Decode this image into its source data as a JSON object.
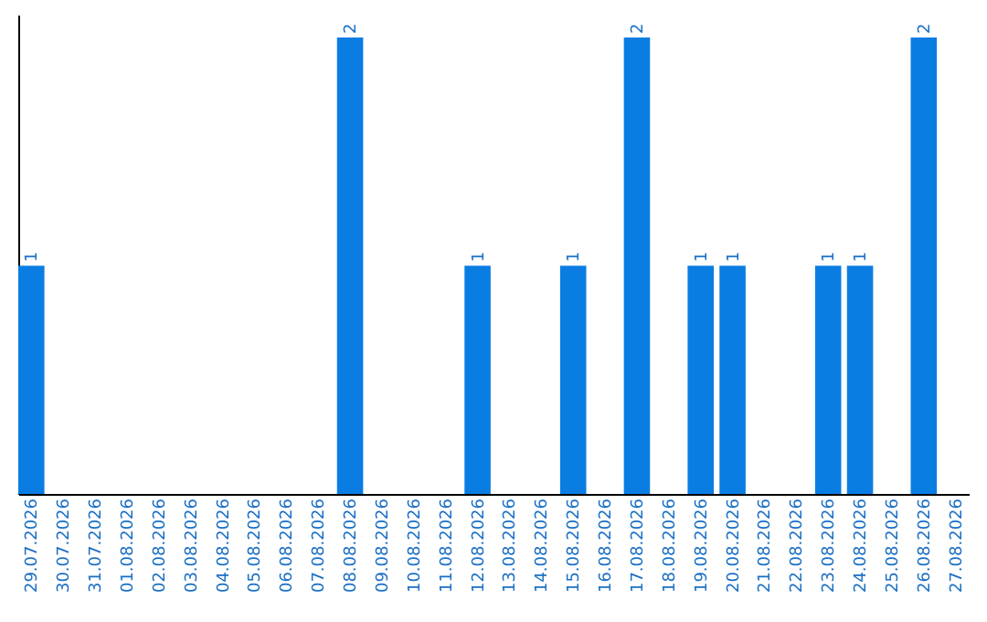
{
  "chart_data": {
    "type": "bar",
    "categories": [
      "29.07.2026",
      "30.07.2026",
      "31.07.2026",
      "01.08.2026",
      "02.08.2026",
      "03.08.2026",
      "04.08.2026",
      "05.08.2026",
      "06.08.2026",
      "07.08.2026",
      "08.08.2026",
      "09.08.2026",
      "10.08.2026",
      "11.08.2026",
      "12.08.2026",
      "13.08.2026",
      "14.08.2026",
      "15.08.2026",
      "16.08.2026",
      "17.08.2026",
      "18.08.2026",
      "19.08.2026",
      "20.08.2026",
      "21.08.2026",
      "22.08.2026",
      "23.08.2026",
      "24.08.2026",
      "25.08.2026",
      "26.08.2026",
      "27.08.2026"
    ],
    "values": [
      1,
      0,
      0,
      0,
      0,
      0,
      0,
      0,
      0,
      0,
      2,
      0,
      0,
      0,
      1,
      0,
      0,
      1,
      0,
      2,
      0,
      1,
      1,
      0,
      0,
      1,
      1,
      0,
      2,
      0
    ],
    "value_labels": [
      "1",
      null,
      null,
      null,
      null,
      null,
      null,
      null,
      null,
      null,
      "2",
      null,
      null,
      null,
      "1",
      null,
      null,
      "1",
      null,
      "2",
      null,
      "1",
      "1",
      null,
      null,
      "1",
      "1",
      null,
      "2",
      null
    ],
    "color": "#0a7de3",
    "ylim": [
      0,
      2.1
    ],
    "tick_labels": "x",
    "grid": false
  }
}
